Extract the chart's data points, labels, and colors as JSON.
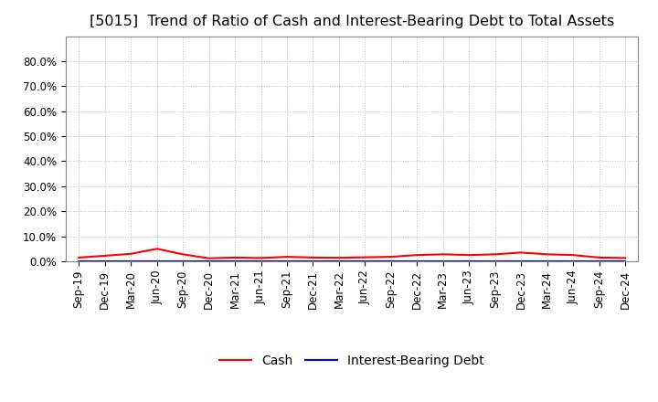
{
  "title": "[5015]  Trend of Ratio of Cash and Interest-Bearing Debt to Total Assets",
  "x_labels": [
    "Sep-19",
    "Dec-19",
    "Mar-20",
    "Jun-20",
    "Sep-20",
    "Dec-20",
    "Mar-21",
    "Jun-21",
    "Sep-21",
    "Dec-21",
    "Mar-22",
    "Jun-22",
    "Sep-22",
    "Dec-22",
    "Mar-23",
    "Jun-23",
    "Sep-23",
    "Dec-23",
    "Mar-24",
    "Jun-24",
    "Sep-24",
    "Dec-24"
  ],
  "cash": [
    1.5,
    2.2,
    3.0,
    5.0,
    2.8,
    1.2,
    1.5,
    1.3,
    1.8,
    1.5,
    1.4,
    1.6,
    1.8,
    2.5,
    2.8,
    2.5,
    2.8,
    3.5,
    2.8,
    2.5,
    1.5,
    1.3
  ],
  "interest_bearing_debt": [
    0.0,
    0.0,
    0.0,
    0.0,
    0.0,
    0.0,
    0.0,
    0.0,
    0.0,
    0.0,
    0.0,
    0.0,
    0.0,
    0.0,
    0.0,
    0.0,
    0.0,
    0.0,
    0.0,
    0.0,
    0.0,
    0.0
  ],
  "cash_color": "#ff0000",
  "debt_color": "#0000ff",
  "ylim_max": 90,
  "yticks": [
    0,
    10,
    20,
    30,
    40,
    50,
    60,
    70,
    80
  ],
  "ytick_labels": [
    "0.0%",
    "10.0%",
    "20.0%",
    "30.0%",
    "40.0%",
    "50.0%",
    "60.0%",
    "70.0%",
    "80.0%"
  ],
  "grid_color": "#bbbbbb",
  "background_color": "#ffffff",
  "legend_cash": "Cash",
  "legend_debt": "Interest-Bearing Debt",
  "title_fontsize": 11.5,
  "tick_fontsize": 8.5,
  "legend_fontsize": 10
}
